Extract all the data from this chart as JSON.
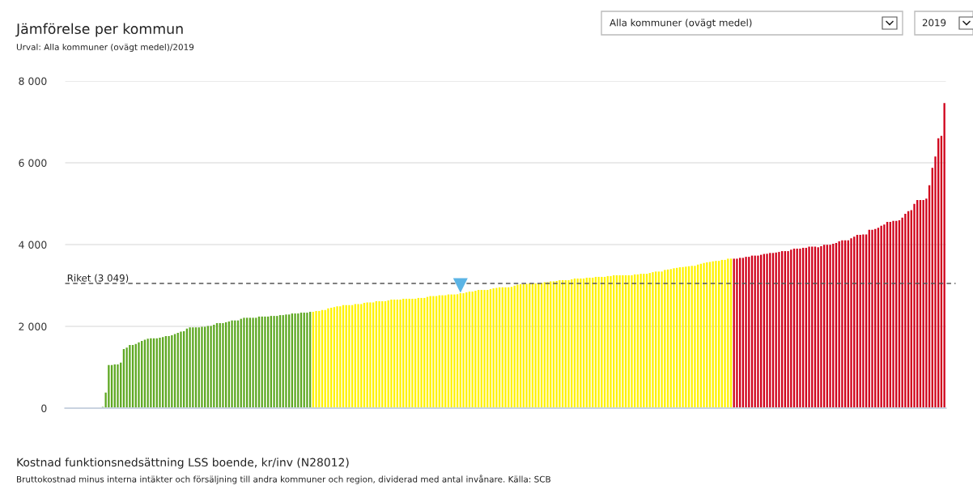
{
  "chart_data": {
    "type": "bar",
    "title": "Jämförelse per kommun",
    "subtitle": "Urval: Alla kommuner (ovägt medel)/2019",
    "annotations": [
      "Kostnad funktionsnedsättning LSS boende, kr/inv (N28012)",
      "Bruttokostnad minus interna intäkter och försäljning till andra kommuner och region, dividerad med antal invånare. Källa: SCB",
      "Alla kommuner (ovägt medel)",
      "2019"
    ],
    "categories": [
      null,
      null,
      null,
      null,
      null,
      null,
      null,
      null,
      null,
      null,
      null,
      null,
      null,
      null,
      null,
      null,
      null,
      null,
      null,
      null,
      null,
      null,
      null,
      null,
      null,
      null,
      null,
      null,
      null,
      null,
      null,
      null,
      null,
      null,
      null,
      null,
      null,
      null,
      null,
      null,
      null,
      null,
      null,
      null,
      null,
      null,
      null,
      null,
      null,
      null,
      null,
      null,
      null,
      null,
      null,
      null,
      null,
      null,
      null,
      null,
      null,
      null,
      null,
      null,
      null,
      null,
      null,
      null,
      null,
      null,
      null,
      null,
      null,
      null,
      null,
      null,
      null,
      null,
      null,
      null,
      null,
      null,
      null,
      null,
      null,
      null,
      null,
      null,
      null,
      null,
      null,
      null,
      null,
      null,
      null,
      null,
      null,
      null,
      null,
      null,
      null,
      null,
      null,
      null,
      null,
      null,
      null,
      null,
      null,
      null,
      null,
      null,
      null,
      null,
      null,
      null,
      null,
      null,
      null,
      null,
      null,
      null,
      null,
      null,
      null,
      null,
      null,
      null,
      null,
      null,
      null,
      null,
      null,
      null,
      null,
      null,
      null,
      null,
      null,
      null,
      null,
      null,
      null,
      null,
      null,
      null,
      null,
      null,
      null,
      null,
      null,
      null,
      null,
      null,
      null,
      null,
      null,
      null,
      null,
      null,
      null,
      null,
      null,
      null,
      null,
      null,
      null,
      null,
      null,
      null,
      null,
      null,
      null,
      null,
      null,
      null,
      null,
      null,
      null,
      null,
      null,
      null,
      null,
      null,
      null,
      null,
      null,
      null,
      null,
      null,
      null,
      null,
      null,
      null,
      null,
      null,
      null,
      null,
      null,
      null,
      null,
      null,
      null,
      null,
      null,
      null,
      null,
      null,
      null,
      null,
      null,
      null,
      null,
      null,
      null,
      null,
      null,
      null,
      null,
      null,
      null,
      null,
      null,
      null,
      null,
      null,
      null,
      null,
      null,
      null,
      null,
      null,
      null,
      null,
      null,
      null,
      null,
      null,
      null,
      null,
      null,
      null,
      null,
      null,
      null,
      null,
      null,
      null,
      null,
      null,
      null,
      null,
      null,
      null,
      null,
      null,
      null,
      null,
      null,
      null,
      null,
      null,
      null,
      null,
      null,
      null,
      null,
      null,
      null,
      null,
      null,
      null,
      null,
      null,
      null,
      null,
      null,
      null,
      null,
      null,
      null,
      null,
      null,
      null,
      null,
      null,
      null,
      null,
      null,
      null,
      null,
      null,
      null
    ],
    "series": [
      {
        "values": [
          0,
          0,
          0,
          0,
          0,
          0,
          0,
          0,
          0,
          0,
          0,
          0,
          30,
          380,
          1055,
          1055,
          1070,
          1070,
          1115,
          1445,
          1480,
          1545,
          1545,
          1570,
          1610,
          1645,
          1675,
          1700,
          1710,
          1710,
          1710,
          1725,
          1740,
          1760,
          1760,
          1780,
          1810,
          1840,
          1870,
          1880,
          1945,
          1975,
          1975,
          1975,
          1975,
          1990,
          1990,
          2010,
          2010,
          2040,
          2080,
          2080,
          2080,
          2100,
          2120,
          2145,
          2145,
          2145,
          2185,
          2210,
          2210,
          2210,
          2210,
          2210,
          2240,
          2240,
          2240,
          2240,
          2255,
          2255,
          2255,
          2275,
          2275,
          2290,
          2290,
          2315,
          2315,
          2315,
          2335,
          2335,
          2335,
          2355,
          2355,
          2375,
          2375,
          2400,
          2400,
          2440,
          2455,
          2470,
          2490,
          2490,
          2520,
          2520,
          2520,
          2520,
          2545,
          2545,
          2545,
          2575,
          2585,
          2585,
          2585,
          2615,
          2615,
          2615,
          2615,
          2635,
          2655,
          2655,
          2655,
          2655,
          2675,
          2675,
          2675,
          2675,
          2675,
          2695,
          2695,
          2695,
          2720,
          2740,
          2740,
          2740,
          2760,
          2760,
          2760,
          2780,
          2780,
          2780,
          2785,
          2810,
          2810,
          2830,
          2850,
          2850,
          2870,
          2890,
          2890,
          2890,
          2890,
          2910,
          2930,
          2940,
          2955,
          2955,
          2955,
          2955,
          2965,
          2995,
          3020,
          3030,
          3030,
          3040,
          3050,
          3050,
          3050,
          3050,
          3060,
          3080,
          3080,
          3100,
          3100,
          3110,
          3130,
          3130,
          3130,
          3130,
          3150,
          3170,
          3170,
          3170,
          3170,
          3190,
          3190,
          3190,
          3210,
          3210,
          3210,
          3210,
          3230,
          3230,
          3250,
          3250,
          3250,
          3250,
          3250,
          3250,
          3250,
          3270,
          3270,
          3285,
          3285,
          3285,
          3305,
          3325,
          3340,
          3340,
          3340,
          3380,
          3390,
          3400,
          3420,
          3430,
          3445,
          3450,
          3460,
          3470,
          3480,
          3480,
          3510,
          3530,
          3550,
          3565,
          3575,
          3590,
          3600,
          3600,
          3625,
          3625,
          3655,
          3655,
          3655,
          3655,
          3675,
          3675,
          3700,
          3700,
          3730,
          3730,
          3730,
          3750,
          3770,
          3775,
          3795,
          3795,
          3805,
          3820,
          3840,
          3840,
          3840,
          3875,
          3900,
          3900,
          3900,
          3920,
          3920,
          3950,
          3950,
          3950,
          3934,
          3960,
          3993,
          3993,
          3993,
          4019,
          4039,
          4079,
          4105,
          4105,
          4105,
          4151,
          4191,
          4237,
          4237,
          4250,
          4250,
          4363,
          4363,
          4382,
          4409,
          4461,
          4488,
          4554,
          4554,
          4580,
          4580,
          4594,
          4659,
          4752,
          4818,
          4844,
          4996,
          5089,
          5089,
          5089,
          5122,
          5452,
          5874,
          6151,
          6600,
          6660,
          7458
        ],
        "colors": [
          "#5ea822",
          "#5ea822",
          "#5ea822",
          "#5ea822",
          "#5ea822",
          "#5ea822",
          "#5ea822",
          "#5ea822",
          "#5ea822",
          "#5ea822",
          "#5ea822",
          "#5ea822",
          "#5ea822",
          "#5ea822",
          "#5ea822",
          "#5ea822",
          "#5ea822",
          "#5ea822",
          "#5ea822",
          "#5ea822",
          "#5ea822",
          "#5ea822",
          "#5ea822",
          "#5ea822",
          "#5ea822",
          "#5ea822",
          "#5ea822",
          "#5ea822",
          "#5ea822",
          "#5ea822",
          "#5ea822",
          "#5ea822",
          "#5ea822",
          "#5ea822",
          "#5ea822",
          "#5ea822",
          "#5ea822",
          "#5ea822",
          "#5ea822",
          "#5ea822",
          "#5ea822",
          "#5ea822",
          "#5ea822",
          "#5ea822",
          "#5ea822",
          "#5ea822",
          "#5ea822",
          "#5ea822",
          "#5ea822",
          "#5ea822",
          "#5ea822",
          "#5ea822",
          "#5ea822",
          "#5ea822",
          "#5ea822",
          "#5ea822",
          "#5ea822",
          "#5ea822",
          "#5ea822",
          "#5ea822",
          "#5ea822",
          "#5ea822",
          "#5ea822",
          "#5ea822",
          "#5ea822",
          "#5ea822",
          "#5ea822",
          "#5ea822",
          "#5ea822",
          "#5ea822",
          "#5ea822",
          "#5ea822",
          "#5ea822",
          "#5ea822",
          "#5ea822",
          "#5ea822",
          "#5ea822",
          "#5ea822",
          "#5ea822",
          "#5ea822",
          "#5ea822",
          "#5ea822",
          "#fff200",
          "#fff200",
          "#fff200",
          "#fff200",
          "#fff200",
          "#fff200",
          "#fff200",
          "#fff200",
          "#fff200",
          "#fff200",
          "#fff200",
          "#fff200",
          "#fff200",
          "#fff200",
          "#fff200",
          "#fff200",
          "#fff200",
          "#fff200",
          "#fff200",
          "#fff200",
          "#fff200",
          "#fff200",
          "#fff200",
          "#fff200",
          "#fff200",
          "#fff200",
          "#fff200",
          "#fff200",
          "#fff200",
          "#fff200",
          "#fff200",
          "#fff200",
          "#fff200",
          "#fff200",
          "#fff200",
          "#fff200",
          "#fff200",
          "#fff200",
          "#fff200",
          "#fff200",
          "#fff200",
          "#fff200",
          "#fff200",
          "#fff200",
          "#fff200",
          "#fff200",
          "#fff200",
          "#fff200",
          "#fff200",
          "#fff200",
          "#fff200",
          "#fff200",
          "#fff200",
          "#fff200",
          "#fff200",
          "#fff200",
          "#fff200",
          "#fff200",
          "#fff200",
          "#fff200",
          "#fff200",
          "#fff200",
          "#fff200",
          "#fff200",
          "#fff200",
          "#fff200",
          "#fff200",
          "#fff200",
          "#fff200",
          "#fff200",
          "#fff200",
          "#fff200",
          "#fff200",
          "#fff200",
          "#fff200",
          "#fff200",
          "#fff200",
          "#fff200",
          "#fff200",
          "#fff200",
          "#fff200",
          "#fff200",
          "#fff200",
          "#fff200",
          "#fff200",
          "#fff200",
          "#fff200",
          "#fff200",
          "#fff200",
          "#fff200",
          "#fff200",
          "#fff200",
          "#fff200",
          "#fff200",
          "#fff200",
          "#fff200",
          "#fff200",
          "#fff200",
          "#fff200",
          "#fff200",
          "#fff200",
          "#fff200",
          "#fff200",
          "#fff200",
          "#fff200",
          "#fff200",
          "#fff200",
          "#fff200",
          "#fff200",
          "#fff200",
          "#fff200",
          "#fff200",
          "#fff200",
          "#fff200",
          "#fff200",
          "#fff200",
          "#fff200",
          "#fff200",
          "#fff200",
          "#fff200",
          "#fff200",
          "#fff200",
          "#fff200",
          "#fff200",
          "#fff200",
          "#fff200",
          "#fff200",
          "#fff200",
          "#fff200",
          "#fff200",
          "#fff200",
          "#fff200",
          "#fff200",
          "#fff200",
          "#fff200",
          "#fff200",
          "#fff200",
          "#fff200",
          "#fff200",
          "#fff200",
          "#d0021b",
          "#d0021b",
          "#d0021b",
          "#d0021b",
          "#d0021b",
          "#d0021b",
          "#d0021b",
          "#d0021b",
          "#d0021b",
          "#d0021b",
          "#d0021b",
          "#d0021b",
          "#d0021b",
          "#d0021b",
          "#d0021b",
          "#d0021b",
          "#d0021b",
          "#d0021b",
          "#d0021b",
          "#d0021b",
          "#d0021b",
          "#d0021b",
          "#d0021b",
          "#d0021b",
          "#d0021b",
          "#d0021b",
          "#d0021b",
          "#d0021b",
          "#d0021b",
          "#d0021b",
          "#d0021b",
          "#d0021b",
          "#d0021b",
          "#d0021b",
          "#d0021b",
          "#d0021b",
          "#d0021b",
          "#d0021b",
          "#d0021b",
          "#d0021b",
          "#d0021b",
          "#d0021b",
          "#d0021b",
          "#d0021b",
          "#d0021b",
          "#d0021b",
          "#d0021b",
          "#d0021b",
          "#d0021b",
          "#d0021b",
          "#d0021b",
          "#d0021b",
          "#d0021b",
          "#d0021b",
          "#d0021b",
          "#d0021b",
          "#d0021b",
          "#d0021b",
          "#d0021b",
          "#d0021b",
          "#d0021b",
          "#d0021b",
          "#d0021b",
          "#d0021b",
          "#d0021b",
          "#d0021b",
          "#d0021b",
          "#d0021b",
          "#d0021b",
          "#d0021b",
          "#d0021b"
        ]
      },
      {
        "type": "scatter",
        "color": "#5bb4e5",
        "marker": "triangle",
        "values": [
          null,
          null,
          null,
          null,
          null,
          null,
          null,
          null,
          null,
          null,
          null,
          null,
          null,
          null,
          null,
          null,
          null,
          null,
          null,
          null,
          null,
          null,
          null,
          null,
          null,
          null,
          null,
          null,
          null,
          null,
          null,
          null,
          null,
          null,
          null,
          null,
          null,
          null,
          null,
          null,
          null,
          null,
          null,
          null,
          null,
          null,
          null,
          null,
          null,
          null,
          null,
          null,
          null,
          null,
          null,
          null,
          null,
          null,
          null,
          null,
          null,
          null,
          null,
          null,
          null,
          null,
          null,
          null,
          null,
          null,
          null,
          null,
          null,
          null,
          null,
          null,
          null,
          null,
          null,
          null,
          null,
          null,
          null,
          null,
          null,
          null,
          null,
          null,
          null,
          null,
          null,
          null,
          null,
          null,
          null,
          null,
          null,
          null,
          null,
          null,
          null,
          null,
          null,
          null,
          null,
          null,
          null,
          null,
          null,
          null,
          null,
          null,
          null,
          null,
          null,
          null,
          null,
          null,
          null,
          null,
          null,
          null,
          null,
          null,
          null,
          null,
          null,
          null,
          null,
          null,
          null,
          3000,
          null,
          null,
          null,
          null,
          null,
          null,
          null,
          null,
          null,
          null,
          null,
          null,
          null,
          null,
          null,
          null,
          null,
          null,
          null,
          null,
          null,
          null,
          null,
          null,
          null,
          null,
          null,
          null,
          null,
          null,
          null,
          null,
          null,
          null,
          null,
          null,
          null,
          null,
          null,
          null,
          null,
          null,
          null,
          null,
          null,
          null,
          null,
          null,
          null,
          null,
          null,
          null,
          null,
          null,
          null,
          null,
          null,
          null,
          null,
          null,
          null,
          null,
          null,
          null,
          null,
          null,
          null,
          null,
          null,
          null,
          null,
          null,
          null,
          null,
          null,
          null,
          null,
          null,
          null,
          null,
          null,
          null,
          null,
          null,
          null,
          null,
          null,
          null,
          null,
          null,
          null,
          null,
          null,
          null,
          null,
          null,
          null,
          null,
          null,
          null,
          null,
          null,
          null,
          null,
          null,
          null,
          null,
          null,
          null,
          null,
          null,
          null,
          null,
          null,
          null,
          null,
          null,
          null,
          null,
          null,
          null,
          null,
          null,
          null,
          null,
          null,
          null,
          null,
          null,
          null,
          null,
          null,
          null,
          null,
          null,
          null,
          null,
          null,
          null,
          null,
          null,
          null,
          null,
          null,
          null,
          null,
          null,
          null,
          null,
          null,
          null,
          null,
          null,
          null,
          null,
          null,
          null,
          null,
          null,
          null,
          null
        ]
      }
    ],
    "ylim": [
      0,
      8000
    ],
    "yticks": [
      {
        "value": 0,
        "label": "0"
      },
      {
        "value": 2000,
        "label": "2 000"
      },
      {
        "value": 4000,
        "label": "4 000"
      },
      {
        "value": 6000,
        "label": "6 000"
      },
      {
        "value": 8000,
        "label": "8 000"
      }
    ],
    "grid": "y",
    "ref_lines": [
      {
        "axis": "y",
        "value": 3049,
        "label": "Riket (3 049)",
        "color": "#555555",
        "line_style": "dashed"
      }
    ]
  }
}
